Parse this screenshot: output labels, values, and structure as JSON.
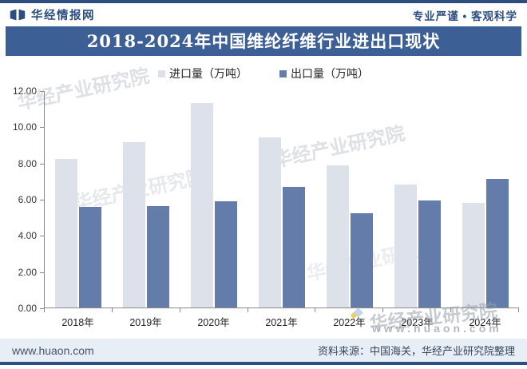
{
  "header": {
    "brand": "华经情报网",
    "slogan": "专业严谨 • 客观科学"
  },
  "title": "2018-2024年中国维纶纤维行业进出口现状",
  "chart_data": {
    "type": "bar",
    "title": "2018-2024年中国维纶纤维行业进出口现状",
    "categories": [
      "2018年",
      "2019年",
      "2020年",
      "2021年",
      "2022年",
      "2023年",
      "2024年"
    ],
    "series": [
      {
        "name": "进口量（万吨）",
        "color": "#dde1ea",
        "values": [
          8.2,
          9.15,
          11.28,
          9.38,
          7.85,
          6.78,
          5.8
        ]
      },
      {
        "name": "出口量（万吨）",
        "color": "#647caa",
        "values": [
          5.58,
          5.62,
          5.88,
          6.68,
          5.2,
          5.92,
          7.1
        ]
      }
    ],
    "ylim": [
      0,
      12
    ],
    "y_ticks": [
      "12.00",
      "10.00",
      "8.00",
      "6.00",
      "4.00",
      "2.00",
      "0.00"
    ],
    "legend_position": "top",
    "grid": false
  },
  "colors": {
    "accent_navy": "#3c5f95",
    "line_navy": "#2e4d80",
    "import_bar": "#dde1ea",
    "export_bar": "#647caa",
    "footer_band": "#e8eef6"
  },
  "watermarks": {
    "research": "华经产业研究院",
    "url": "www.huaon.com"
  },
  "footer": {
    "site": "www.huaon.com",
    "source": "资料来源：中国海关，华经产业研究院整理"
  }
}
